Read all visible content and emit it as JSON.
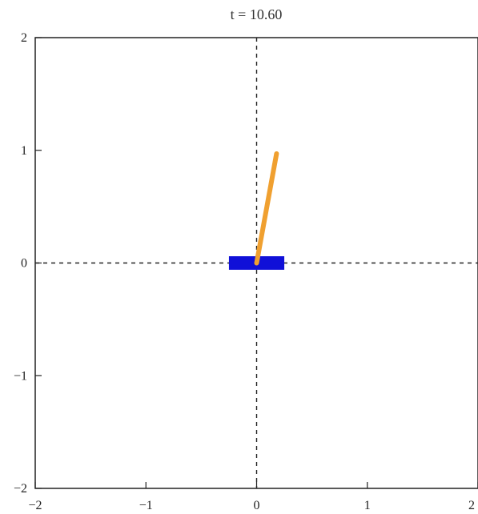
{
  "title": "t = 10.60",
  "colors": {
    "frame": "#222222",
    "axes": "#222222",
    "cart": "#1010d8",
    "pole": "#f0a030"
  },
  "chart_data": {
    "type": "scatter",
    "title": "t = 10.60",
    "xlabel": "",
    "ylabel": "",
    "xlim": [
      -2,
      2
    ],
    "ylim": [
      -2,
      2
    ],
    "x_ticks": [
      "−2",
      "−1",
      "0",
      "1",
      "2"
    ],
    "y_ticks": [
      "2",
      "1",
      "0",
      "−1",
      "−2"
    ],
    "grid": false,
    "reference_lines": [
      {
        "orientation": "horizontal",
        "value": 0,
        "style": "dashed"
      },
      {
        "orientation": "vertical",
        "value": 0,
        "style": "dashed"
      }
    ],
    "cart": {
      "x_center": 0,
      "y_center": 0,
      "width": 0.5,
      "height": 0.12
    },
    "pole": {
      "x0": 0,
      "y0": 0,
      "x1": 0.18,
      "y1": 0.97
    }
  }
}
